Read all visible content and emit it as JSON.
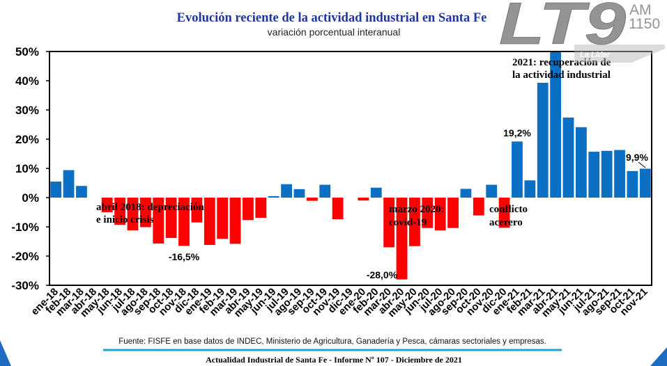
{
  "colors": {
    "title": "#1f35a0",
    "positive": "#0b6fc4",
    "negative": "#ff0000",
    "footer_line": "#1ea1de",
    "corner": "#1e6cc2",
    "logo": "#8f8f8f"
  },
  "logo": {
    "main": "LT9",
    "band": "AM",
    "frequency": "1150",
    "slogan": "La Líder"
  },
  "footer": {
    "source": "Fuente: FISFE en base datos de INDEC, Ministerio de Agricultura, Ganadería y Pesca, cámaras sectoriales y empresas.",
    "report": "Actualidad Industrial de Santa Fe - Informe Nº 107 - Diciembre de 2021"
  },
  "chart_data": {
    "type": "bar",
    "title": "Evolución reciente de la actividad industrial en Santa Fe",
    "subtitle": "variación porcentual interanual",
    "xlabel": "",
    "ylabel": "",
    "ylim": [
      -30,
      50
    ],
    "grid": false,
    "yticks": [
      50,
      40,
      30,
      20,
      10,
      0,
      -10,
      -20,
      -30
    ],
    "y_tick_labels": [
      "50%",
      "40%",
      "30%",
      "20%",
      "10%",
      "0%",
      "-10%",
      "-20%",
      "-30%"
    ],
    "categories": [
      "ene-18",
      "feb-18",
      "mar-18",
      "abr-18",
      "may-18",
      "jun-18",
      "jul-18",
      "ago-18",
      "sep-18",
      "oct-18",
      "nov-18",
      "dic-18",
      "ene-19",
      "feb-19",
      "mar-19",
      "abr-19",
      "may-19",
      "jun-19",
      "jul-19",
      "ago-19",
      "sep-19",
      "oct-19",
      "nov-19",
      "dic-19",
      "ene-20",
      "feb-20",
      "mar-20",
      "abr-20",
      "may-20",
      "jun-20",
      "jul-20",
      "ago-20",
      "sep-20",
      "oct-20",
      "nov-20",
      "dic-20",
      "ene-21",
      "feb-21",
      "mar-21",
      "abr-21",
      "may-21",
      "jun-21",
      "jul-21",
      "ago-21",
      "sep-21",
      "oct-21",
      "nov-21"
    ],
    "values": [
      5.5,
      9.4,
      4.0,
      0.0,
      -5.0,
      -9.3,
      -11.2,
      -10.1,
      -15.7,
      -13.8,
      -16.5,
      -8.5,
      -16.2,
      -14.1,
      -15.8,
      -7.7,
      -6.9,
      0.5,
      4.6,
      2.9,
      -1.1,
      4.4,
      -7.4,
      0.0,
      -1.0,
      3.4,
      -17.0,
      -28.0,
      -16.6,
      -10.4,
      -11.2,
      -10.4,
      3.0,
      -6.1,
      4.4,
      -10.3,
      19.2,
      5.9,
      39.3,
      50.0,
      27.4,
      24.1,
      15.7,
      16.0,
      16.3,
      9.1,
      9.9
    ],
    "data_labels": {
      "nov-18": "-16,5%",
      "abr-20": "-28,0%",
      "ene-21": "19,2%",
      "nov-21": "9,9%"
    },
    "annotations": [
      [
        "abril 2018: depreciación",
        "e inicio crisis"
      ],
      [
        "marzo 2020:",
        "covid-19"
      ],
      [
        "conflicto",
        "acerero"
      ],
      [
        "2021: recuperación de",
        "la actividad industrial"
      ]
    ]
  }
}
